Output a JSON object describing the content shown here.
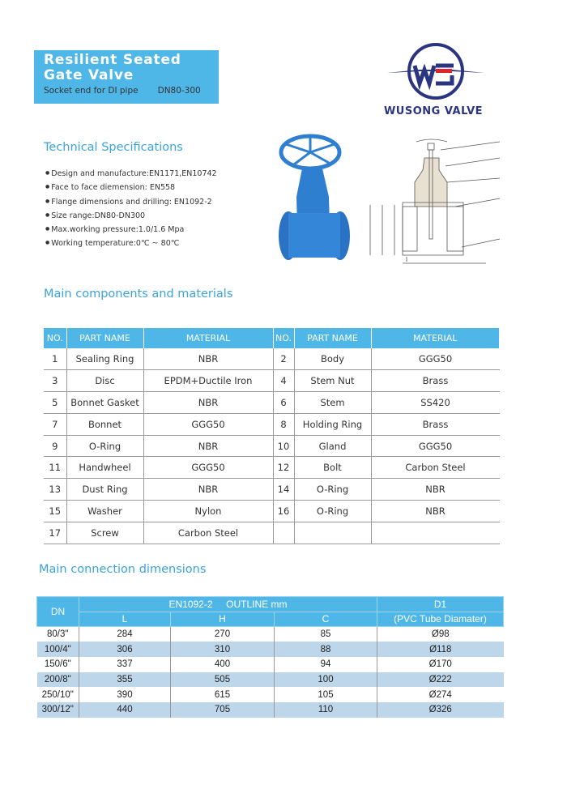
{
  "header": {
    "title_line1": "Resilient Seated",
    "title_line2": "Gate Valve",
    "subtitle": "Socket end for DI pipe",
    "size": "DN80-300"
  },
  "logo": {
    "brand": "WUSONG VALVE",
    "letters": "WS",
    "colors": {
      "navy": "#2a3480",
      "red": "#e0242c"
    }
  },
  "specs": {
    "heading": "Technical Specifications",
    "items": [
      "Design and manufacture:EN1171,EN10742",
      "Face to face diemension: EN558",
      "Flange dimensions and drilling: EN1092-2",
      "Size range:DN80-DN300",
      "Max.working pressure:1.0/1.6 Mpa",
      "Working temperature:0℃ ~ 80℃"
    ]
  },
  "components": {
    "heading": "Main components and materials",
    "headers": [
      "NO.",
      "PART NAME",
      "MATERIAL",
      "NO.",
      "PART NAME",
      "MATERIAL"
    ],
    "rows": [
      [
        "1",
        "Sealing Ring",
        "NBR",
        "2",
        "Body",
        "GGG50"
      ],
      [
        "3",
        "Disc",
        "EPDM+Ductile Iron",
        "4",
        "Stem Nut",
        "Brass"
      ],
      [
        "5",
        "Bonnet Gasket",
        "NBR",
        "6",
        "Stem",
        "SS420"
      ],
      [
        "7",
        "Bonnet",
        "GGG50",
        "8",
        "Holding Ring",
        "Brass"
      ],
      [
        "9",
        "O-Ring",
        "NBR",
        "10",
        "Gland",
        "GGG50"
      ],
      [
        "11",
        "Handwheel",
        "GGG50",
        "12",
        "Bolt",
        "Carbon Steel"
      ],
      [
        "13",
        "Dust Ring",
        "NBR",
        "14",
        "O-Ring",
        "NBR"
      ],
      [
        "15",
        "Washer",
        "Nylon",
        "16",
        "O-Ring",
        "NBR"
      ],
      [
        "17",
        "Screw",
        "Carbon Steel",
        "",
        "",
        ""
      ]
    ]
  },
  "dimensions": {
    "heading": "Main connection dimensions",
    "dn": "DN",
    "group": "EN1092-2     OUTLINE mm",
    "cols": [
      "L",
      "H",
      "C"
    ],
    "d1": "D1",
    "d1_sub": "(PVC Tube Diamater)",
    "rows": [
      [
        "80/3\"",
        "284",
        "270",
        "85",
        "Ø98"
      ],
      [
        "100/4\"",
        "306",
        "310",
        "88",
        "Ø118"
      ],
      [
        "150/6\"",
        "337",
        "400",
        "94",
        "Ø170"
      ],
      [
        "200/8\"",
        "355",
        "505",
        "100",
        "Ø222"
      ],
      [
        "250/10\"",
        "390",
        "615",
        "105",
        "Ø274"
      ],
      [
        "300/12\"",
        "440",
        "705",
        "110",
        "Ø326"
      ]
    ]
  },
  "colors": {
    "accent": "#4fb6e8",
    "heading": "#3aa3dc",
    "row_alt": "#bdd6ea",
    "valve": "#2f7fd0"
  }
}
